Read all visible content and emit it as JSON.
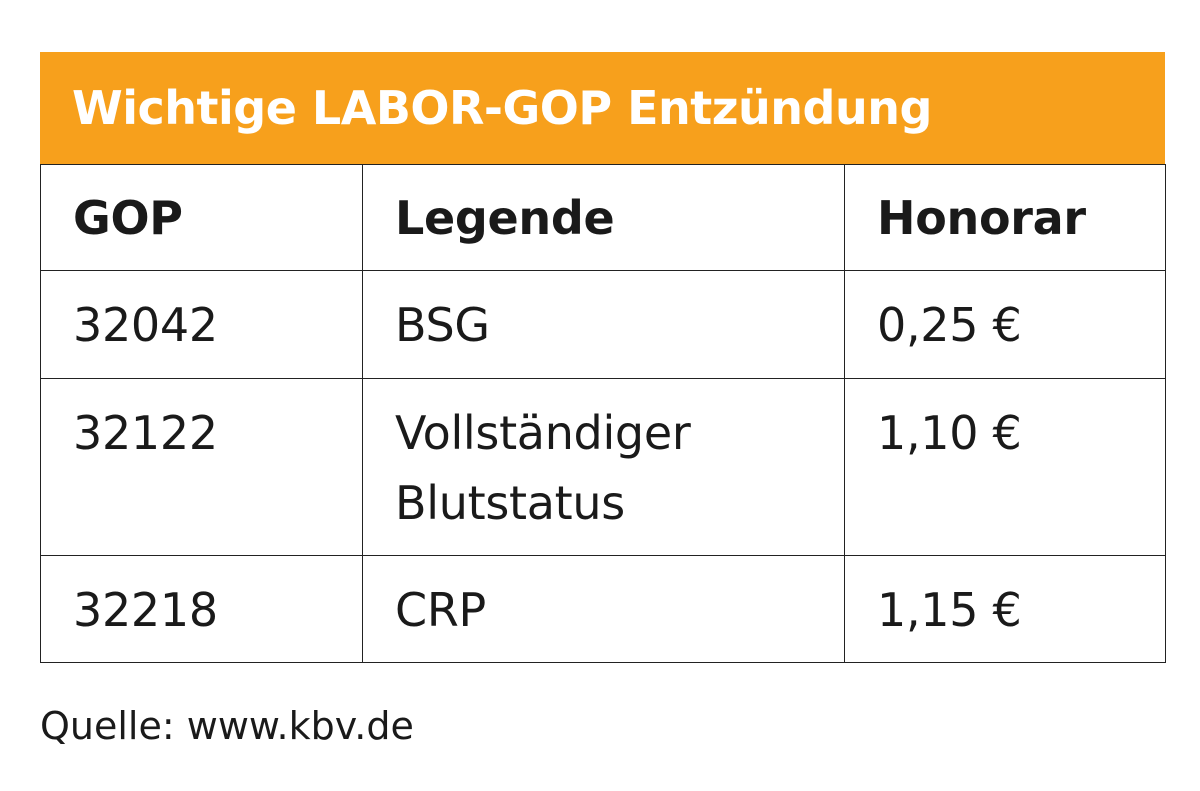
{
  "title": "Wichtige LABOR-GOP Entzündung",
  "columns": {
    "gop": "GOP",
    "legende": "Legende",
    "honorar": "Honorar"
  },
  "rows": [
    {
      "gop": "32042",
      "legende_line1": "BSG",
      "legende_line2": "",
      "honorar": "0,25 €"
    },
    {
      "gop": "32122",
      "legende_line1": "Vollständiger",
      "legende_line2": "Blutstatus",
      "honorar": "1,10 €"
    },
    {
      "gop": "32218",
      "legende_line1": "CRP",
      "legende_line2": "",
      "honorar": "1,15 €"
    }
  ],
  "source": "Quelle: www.kbv.de",
  "colors": {
    "header_bar": "#f7a01c",
    "header_text": "#ffffff",
    "text": "#1a1a1a",
    "border": "#222222"
  }
}
